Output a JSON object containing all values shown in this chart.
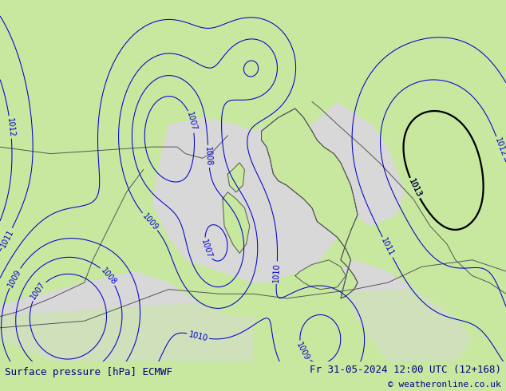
{
  "title_left": "Surface pressure [hPa] ECMWF",
  "title_right": "Fr 31-05-2024 12:00 UTC (12+168)",
  "copyright": "© weatheronline.co.uk",
  "bg_color_land": "#c8e8a0",
  "bg_color_sea": "#d8d8d8",
  "bg_color_outer": "#c8e8a0",
  "contour_color_blue": "#0000cc",
  "contour_color_red": "#cc0000",
  "contour_color_black": "#000000",
  "label_fontsize": 7,
  "title_fontsize": 9,
  "figsize": [
    6.34,
    4.9
  ],
  "dpi": 100,
  "bottom_bar_color": "#c8e0f8",
  "title_color": "#000080",
  "bottom_bar_height": 0.075
}
